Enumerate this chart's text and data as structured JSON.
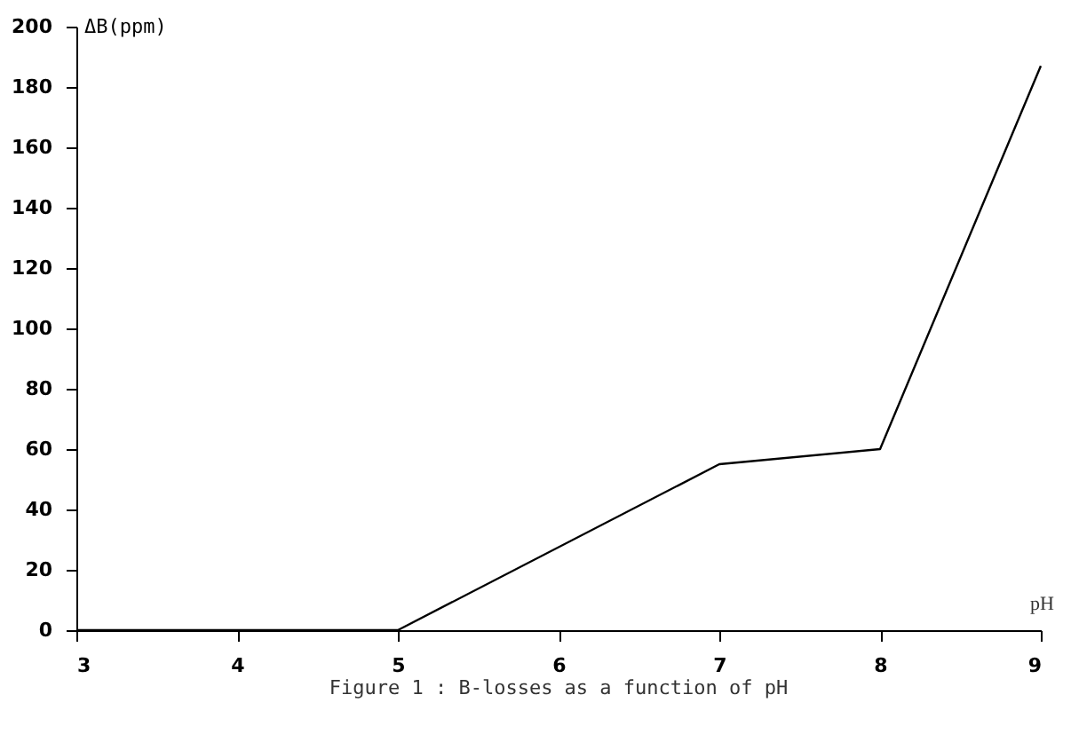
{
  "chart_data": {
    "type": "line",
    "xlabel": "pH",
    "ylabel": "ΔB(ppm)",
    "annotations": [
      "Figure 1 : B-losses as a function of pH"
    ],
    "x": [
      3,
      4,
      5,
      7,
      8,
      9
    ],
    "series": [
      {
        "color": "#000000",
        "values": [
          0,
          0,
          0,
          55,
          60,
          187
        ]
      }
    ],
    "xlim": [
      3,
      9
    ],
    "xticks": [
      3,
      4,
      5,
      6,
      7,
      8,
      9
    ],
    "ylim": [
      0,
      200
    ],
    "yticks": [
      0,
      20,
      40,
      60,
      80,
      100,
      120,
      140,
      160,
      180,
      200
    ],
    "grid": false,
    "marker": "none",
    "line_style": "solid"
  }
}
